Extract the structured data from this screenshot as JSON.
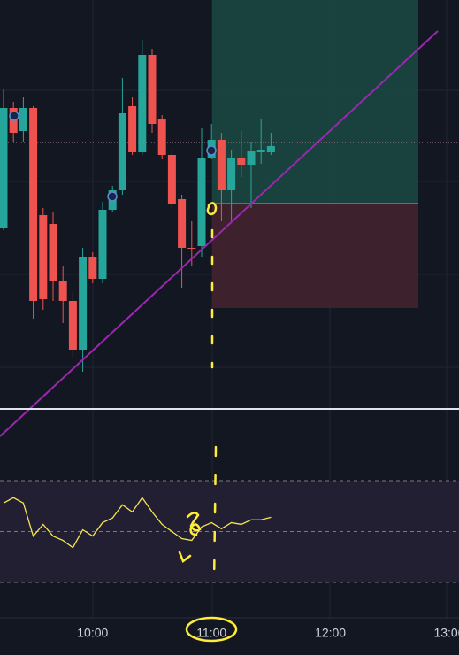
{
  "chart_data": {
    "type": "candlestick",
    "up_color": "#26a69a",
    "down_color": "#ef5350",
    "ylim": [
      0,
      462
    ],
    "candles": [
      {
        "open": 204,
        "high": 362,
        "low": 202,
        "close": 340
      },
      {
        "open": 340,
        "high": 347,
        "low": 302,
        "close": 312
      },
      {
        "open": 314,
        "high": 352,
        "low": 302,
        "close": 340
      },
      {
        "open": 340,
        "high": 342,
        "low": 102,
        "close": 122
      },
      {
        "open": 219,
        "high": 227,
        "low": 112,
        "close": 124
      },
      {
        "open": 209,
        "high": 222,
        "low": 122,
        "close": 144
      },
      {
        "open": 144,
        "high": 162,
        "low": 97,
        "close": 122
      },
      {
        "open": 122,
        "high": 132,
        "low": 57,
        "close": 67
      },
      {
        "open": 67,
        "high": 182,
        "low": 42,
        "close": 172
      },
      {
        "open": 172,
        "high": 177,
        "low": 142,
        "close": 147
      },
      {
        "open": 147,
        "high": 234,
        "low": 142,
        "close": 225
      },
      {
        "open": 225,
        "high": 252,
        "low": 222,
        "close": 247
      },
      {
        "open": 247,
        "high": 374,
        "low": 242,
        "close": 334
      },
      {
        "open": 342,
        "high": 352,
        "low": 287,
        "close": 290
      },
      {
        "open": 290,
        "high": 417,
        "low": 287,
        "close": 400
      },
      {
        "open": 400,
        "high": 407,
        "low": 312,
        "close": 322
      },
      {
        "open": 327,
        "high": 332,
        "low": 282,
        "close": 287
      },
      {
        "open": 287,
        "high": 292,
        "low": 227,
        "close": 232
      },
      {
        "open": 237,
        "high": 242,
        "low": 137,
        "close": 182
      },
      {
        "open": 182,
        "high": 212,
        "low": 162,
        "close": 181
      },
      {
        "open": 184,
        "high": 317,
        "low": 172,
        "close": 284
      },
      {
        "open": 284,
        "high": 322,
        "low": 282,
        "close": 304
      },
      {
        "open": 304,
        "high": 312,
        "low": 212,
        "close": 247
      },
      {
        "open": 247,
        "high": 292,
        "low": 212,
        "close": 284
      },
      {
        "open": 284,
        "high": 314,
        "low": 262,
        "close": 276
      },
      {
        "open": 276,
        "high": 302,
        "low": 227,
        "close": 291
      },
      {
        "open": 290,
        "high": 327,
        "low": 277,
        "close": 292
      },
      {
        "open": 290,
        "high": 312,
        "low": 287,
        "close": 297
      }
    ],
    "time_labels": [
      "10:00",
      "11:00",
      "12:00",
      "13:00"
    ],
    "indicator": {
      "color": "#f7e552",
      "ylim": [
        30,
        70
      ],
      "levels": [
        30,
        50,
        70
      ],
      "values": [
        61.2,
        63.3,
        61.2,
        48.2,
        52.8,
        48.2,
        46.5,
        43.7,
        50.7,
        48.2,
        53.5,
        55.3,
        60.5,
        57.7,
        63.3,
        57.7,
        52.8,
        50,
        47.2,
        46.5,
        51.8,
        53.5,
        51.1,
        53.5,
        52.8,
        54.6,
        54.6,
        55.6
      ]
    }
  }
}
